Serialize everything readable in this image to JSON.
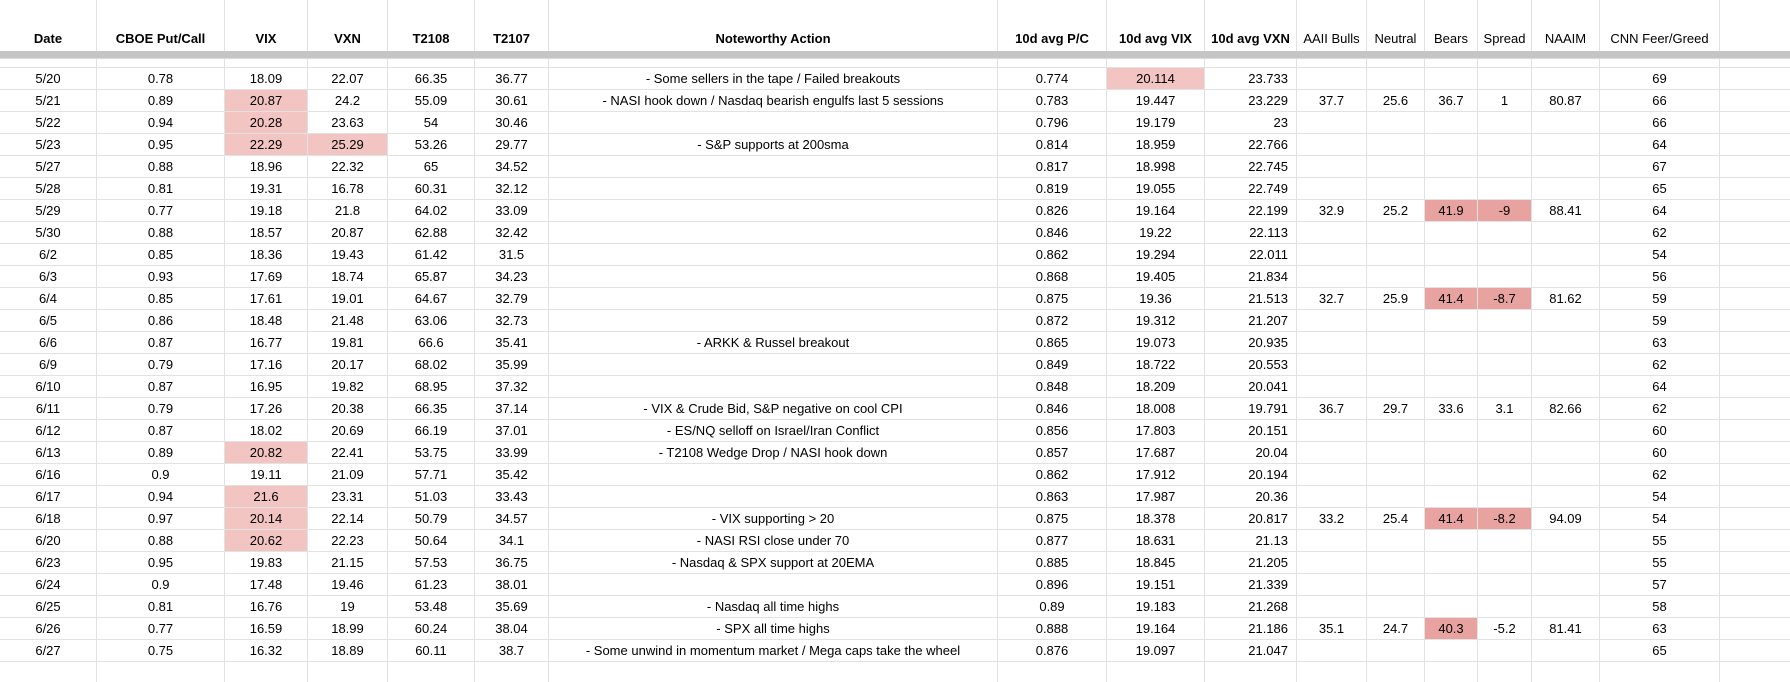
{
  "colors": {
    "highlight_light": "#f2c5c2",
    "highlight_dark": "#e8a3a0",
    "gridline": "#e2e2e2",
    "frozen_divider": "#c5c5c5"
  },
  "table": {
    "columns": [
      {
        "key": "date",
        "label": "Date",
        "bold": true,
        "align": "center"
      },
      {
        "key": "put_call",
        "label": "CBOE Put/Call",
        "bold": true,
        "align": "center"
      },
      {
        "key": "vix",
        "label": "VIX",
        "bold": true,
        "align": "center"
      },
      {
        "key": "vxn",
        "label": "VXN",
        "bold": true,
        "align": "center"
      },
      {
        "key": "t2108",
        "label": "T2108",
        "bold": true,
        "align": "center"
      },
      {
        "key": "t2107",
        "label": "T2107",
        "bold": true,
        "align": "center"
      },
      {
        "key": "action",
        "label": "Noteworthy Action",
        "bold": true,
        "align": "center"
      },
      {
        "key": "avg_pc",
        "label": "10d avg P/C",
        "bold": true,
        "align": "center"
      },
      {
        "key": "avg_vix",
        "label": "10d avg VIX",
        "bold": true,
        "align": "center"
      },
      {
        "key": "avg_vxn",
        "label": "10d avg VXN",
        "bold": true,
        "align": "right"
      },
      {
        "key": "aaii_bulls",
        "label": "AAII Bulls",
        "bold": false,
        "align": "center"
      },
      {
        "key": "neutral",
        "label": "Neutral",
        "bold": false,
        "align": "center"
      },
      {
        "key": "bears",
        "label": "Bears",
        "bold": false,
        "align": "center"
      },
      {
        "key": "spread",
        "label": "Spread",
        "bold": false,
        "align": "center"
      },
      {
        "key": "naaim",
        "label": "NAAIM",
        "bold": false,
        "align": "center"
      },
      {
        "key": "cnn",
        "label": "CNN Feer/Greed",
        "bold": false,
        "align": "center"
      }
    ],
    "rows": [
      {
        "date": "5/20",
        "put_call": "0.78",
        "vix": "18.09",
        "vxn": "22.07",
        "t2108": "66.35",
        "t2107": "36.77",
        "action": "- Some sellers in the tape / Failed breakouts",
        "avg_pc": "0.774",
        "avg_vix": "20.114",
        "avg_vxn": "23.733",
        "aaii_bulls": "",
        "neutral": "",
        "bears": "",
        "spread": "",
        "naaim": "",
        "cnn": "69",
        "highlights": {
          "avg_vix": "highlight_light"
        }
      },
      {
        "date": "5/21",
        "put_call": "0.89",
        "vix": "20.87",
        "vxn": "24.2",
        "t2108": "55.09",
        "t2107": "30.61",
        "action": "- NASI hook down / Nasdaq bearish engulfs last 5 sessions",
        "avg_pc": "0.783",
        "avg_vix": "19.447",
        "avg_vxn": "23.229",
        "aaii_bulls": "37.7",
        "neutral": "25.6",
        "bears": "36.7",
        "spread": "1",
        "naaim": "80.87",
        "cnn": "66",
        "highlights": {
          "vix": "highlight_light"
        }
      },
      {
        "date": "5/22",
        "put_call": "0.94",
        "vix": "20.28",
        "vxn": "23.63",
        "t2108": "54",
        "t2107": "30.46",
        "action": "",
        "avg_pc": "0.796",
        "avg_vix": "19.179",
        "avg_vxn": "23",
        "cnn": "66",
        "highlights": {
          "vix": "highlight_light"
        }
      },
      {
        "date": "5/23",
        "put_call": "0.95",
        "vix": "22.29",
        "vxn": "25.29",
        "t2108": "53.26",
        "t2107": "29.77",
        "action": "- S&P supports at 200sma",
        "avg_pc": "0.814",
        "avg_vix": "18.959",
        "avg_vxn": "22.766",
        "cnn": "64",
        "highlights": {
          "vix": "highlight_light",
          "vxn": "highlight_light"
        }
      },
      {
        "date": "5/27",
        "put_call": "0.88",
        "vix": "18.96",
        "vxn": "22.32",
        "t2108": "65",
        "t2107": "34.52",
        "action": "",
        "avg_pc": "0.817",
        "avg_vix": "18.998",
        "avg_vxn": "22.745",
        "cnn": "67"
      },
      {
        "date": "5/28",
        "put_call": "0.81",
        "vix": "19.31",
        "vxn": "16.78",
        "t2108": "60.31",
        "t2107": "32.12",
        "action": "",
        "avg_pc": "0.819",
        "avg_vix": "19.055",
        "avg_vxn": "22.749",
        "cnn": "65"
      },
      {
        "date": "5/29",
        "put_call": "0.77",
        "vix": "19.18",
        "vxn": "21.8",
        "t2108": "64.02",
        "t2107": "33.09",
        "action": "",
        "avg_pc": "0.826",
        "avg_vix": "19.164",
        "avg_vxn": "22.199",
        "aaii_bulls": "32.9",
        "neutral": "25.2",
        "bears": "41.9",
        "spread": "-9",
        "naaim": "88.41",
        "cnn": "64",
        "highlights": {
          "bears": "highlight_dark",
          "spread": "highlight_dark"
        }
      },
      {
        "date": "5/30",
        "put_call": "0.88",
        "vix": "18.57",
        "vxn": "20.87",
        "t2108": "62.88",
        "t2107": "32.42",
        "action": "",
        "avg_pc": "0.846",
        "avg_vix": "19.22",
        "avg_vxn": "22.113",
        "cnn": "62"
      },
      {
        "date": "6/2",
        "put_call": "0.85",
        "vix": "18.36",
        "vxn": "19.43",
        "t2108": "61.42",
        "t2107": "31.5",
        "action": "",
        "avg_pc": "0.862",
        "avg_vix": "19.294",
        "avg_vxn": "22.011",
        "cnn": "54"
      },
      {
        "date": "6/3",
        "put_call": "0.93",
        "vix": "17.69",
        "vxn": "18.74",
        "t2108": "65.87",
        "t2107": "34.23",
        "action": "",
        "avg_pc": "0.868",
        "avg_vix": "19.405",
        "avg_vxn": "21.834",
        "cnn": "56"
      },
      {
        "date": "6/4",
        "put_call": "0.85",
        "vix": "17.61",
        "vxn": "19.01",
        "t2108": "64.67",
        "t2107": "32.79",
        "action": "",
        "avg_pc": "0.875",
        "avg_vix": "19.36",
        "avg_vxn": "21.513",
        "aaii_bulls": "32.7",
        "neutral": "25.9",
        "bears": "41.4",
        "spread": "-8.7",
        "naaim": "81.62",
        "cnn": "59",
        "highlights": {
          "bears": "highlight_dark",
          "spread": "highlight_dark"
        }
      },
      {
        "date": "6/5",
        "put_call": "0.86",
        "vix": "18.48",
        "vxn": "21.48",
        "t2108": "63.06",
        "t2107": "32.73",
        "action": "",
        "avg_pc": "0.872",
        "avg_vix": "19.312",
        "avg_vxn": "21.207",
        "cnn": "59"
      },
      {
        "date": "6/6",
        "put_call": "0.87",
        "vix": "16.77",
        "vxn": "19.81",
        "t2108": "66.6",
        "t2107": "35.41",
        "action": "- ARKK & Russel breakout",
        "avg_pc": "0.865",
        "avg_vix": "19.073",
        "avg_vxn": "20.935",
        "cnn": "63"
      },
      {
        "date": "6/9",
        "put_call": "0.79",
        "vix": "17.16",
        "vxn": "20.17",
        "t2108": "68.02",
        "t2107": "35.99",
        "action": "",
        "avg_pc": "0.849",
        "avg_vix": "18.722",
        "avg_vxn": "20.553",
        "cnn": "62"
      },
      {
        "date": "6/10",
        "put_call": "0.87",
        "vix": "16.95",
        "vxn": "19.82",
        "t2108": "68.95",
        "t2107": "37.32",
        "action": "",
        "avg_pc": "0.848",
        "avg_vix": "18.209",
        "avg_vxn": "20.041",
        "cnn": "64"
      },
      {
        "date": "6/11",
        "put_call": "0.79",
        "vix": "17.26",
        "vxn": "20.38",
        "t2108": "66.35",
        "t2107": "37.14",
        "action": "- VIX & Crude Bid, S&P negative on cool CPI",
        "avg_pc": "0.846",
        "avg_vix": "18.008",
        "avg_vxn": "19.791",
        "aaii_bulls": "36.7",
        "neutral": "29.7",
        "bears": "33.6",
        "spread": "3.1",
        "naaim": "82.66",
        "cnn": "62"
      },
      {
        "date": "6/12",
        "put_call": "0.87",
        "vix": "18.02",
        "vxn": "20.69",
        "t2108": "66.19",
        "t2107": "37.01",
        "action": "- ES/NQ selloff on Israel/Iran Conflict",
        "avg_pc": "0.856",
        "avg_vix": "17.803",
        "avg_vxn": "20.151",
        "cnn": "60"
      },
      {
        "date": "6/13",
        "put_call": "0.89",
        "vix": "20.82",
        "vxn": "22.41",
        "t2108": "53.75",
        "t2107": "33.99",
        "action": "- T2108 Wedge Drop / NASI hook down",
        "avg_pc": "0.857",
        "avg_vix": "17.687",
        "avg_vxn": "20.04",
        "cnn": "60",
        "highlights": {
          "vix": "highlight_light"
        }
      },
      {
        "date": "6/16",
        "put_call": "0.9",
        "vix": "19.11",
        "vxn": "21.09",
        "t2108": "57.71",
        "t2107": "35.42",
        "action": "",
        "avg_pc": "0.862",
        "avg_vix": "17.912",
        "avg_vxn": "20.194",
        "cnn": "62"
      },
      {
        "date": "6/17",
        "put_call": "0.94",
        "vix": "21.6",
        "vxn": "23.31",
        "t2108": "51.03",
        "t2107": "33.43",
        "action": "",
        "avg_pc": "0.863",
        "avg_vix": "17.987",
        "avg_vxn": "20.36",
        "cnn": "54",
        "highlights": {
          "vix": "highlight_light"
        }
      },
      {
        "date": "6/18",
        "put_call": "0.97",
        "vix": "20.14",
        "vxn": "22.14",
        "t2108": "50.79",
        "t2107": "34.57",
        "action": "- VIX supporting > 20",
        "avg_pc": "0.875",
        "avg_vix": "18.378",
        "avg_vxn": "20.817",
        "aaii_bulls": "33.2",
        "neutral": "25.4",
        "bears": "41.4",
        "spread": "-8.2",
        "naaim": "94.09",
        "cnn": "54",
        "highlights": {
          "vix": "highlight_light",
          "bears": "highlight_dark",
          "spread": "highlight_dark"
        }
      },
      {
        "date": "6/20",
        "put_call": "0.88",
        "vix": "20.62",
        "vxn": "22.23",
        "t2108": "50.64",
        "t2107": "34.1",
        "action": "- NASI RSI close under 70",
        "avg_pc": "0.877",
        "avg_vix": "18.631",
        "avg_vxn": "21.13",
        "cnn": "55",
        "highlights": {
          "vix": "highlight_light"
        }
      },
      {
        "date": "6/23",
        "put_call": "0.95",
        "vix": "19.83",
        "vxn": "21.15",
        "t2108": "57.53",
        "t2107": "36.75",
        "action": "- Nasdaq & SPX support at 20EMA",
        "avg_pc": "0.885",
        "avg_vix": "18.845",
        "avg_vxn": "21.205",
        "cnn": "55"
      },
      {
        "date": "6/24",
        "put_call": "0.9",
        "vix": "17.48",
        "vxn": "19.46",
        "t2108": "61.23",
        "t2107": "38.01",
        "action": "",
        "avg_pc": "0.896",
        "avg_vix": "19.151",
        "avg_vxn": "21.339",
        "cnn": "57"
      },
      {
        "date": "6/25",
        "put_call": "0.81",
        "vix": "16.76",
        "vxn": "19",
        "t2108": "53.48",
        "t2107": "35.69",
        "action": "- Nasdaq all time highs",
        "avg_pc": "0.89",
        "avg_vix": "19.183",
        "avg_vxn": "21.268",
        "cnn": "58"
      },
      {
        "date": "6/26",
        "put_call": "0.77",
        "vix": "16.59",
        "vxn": "18.99",
        "t2108": "60.24",
        "t2107": "38.04",
        "action": "- SPX all time highs",
        "avg_pc": "0.888",
        "avg_vix": "19.164",
        "avg_vxn": "21.186",
        "aaii_bulls": "35.1",
        "neutral": "24.7",
        "bears": "40.3",
        "spread": "-5.2",
        "naaim": "81.41",
        "cnn": "63",
        "highlights": {
          "bears": "highlight_dark"
        }
      },
      {
        "date": "6/27",
        "put_call": "0.75",
        "vix": "16.32",
        "vxn": "18.89",
        "t2108": "60.11",
        "t2107": "38.7",
        "action": "- Some unwind in momentum market / Mega caps take the wheel",
        "avg_pc": "0.876",
        "avg_vix": "19.097",
        "avg_vxn": "21.047",
        "cnn": "65"
      }
    ]
  }
}
